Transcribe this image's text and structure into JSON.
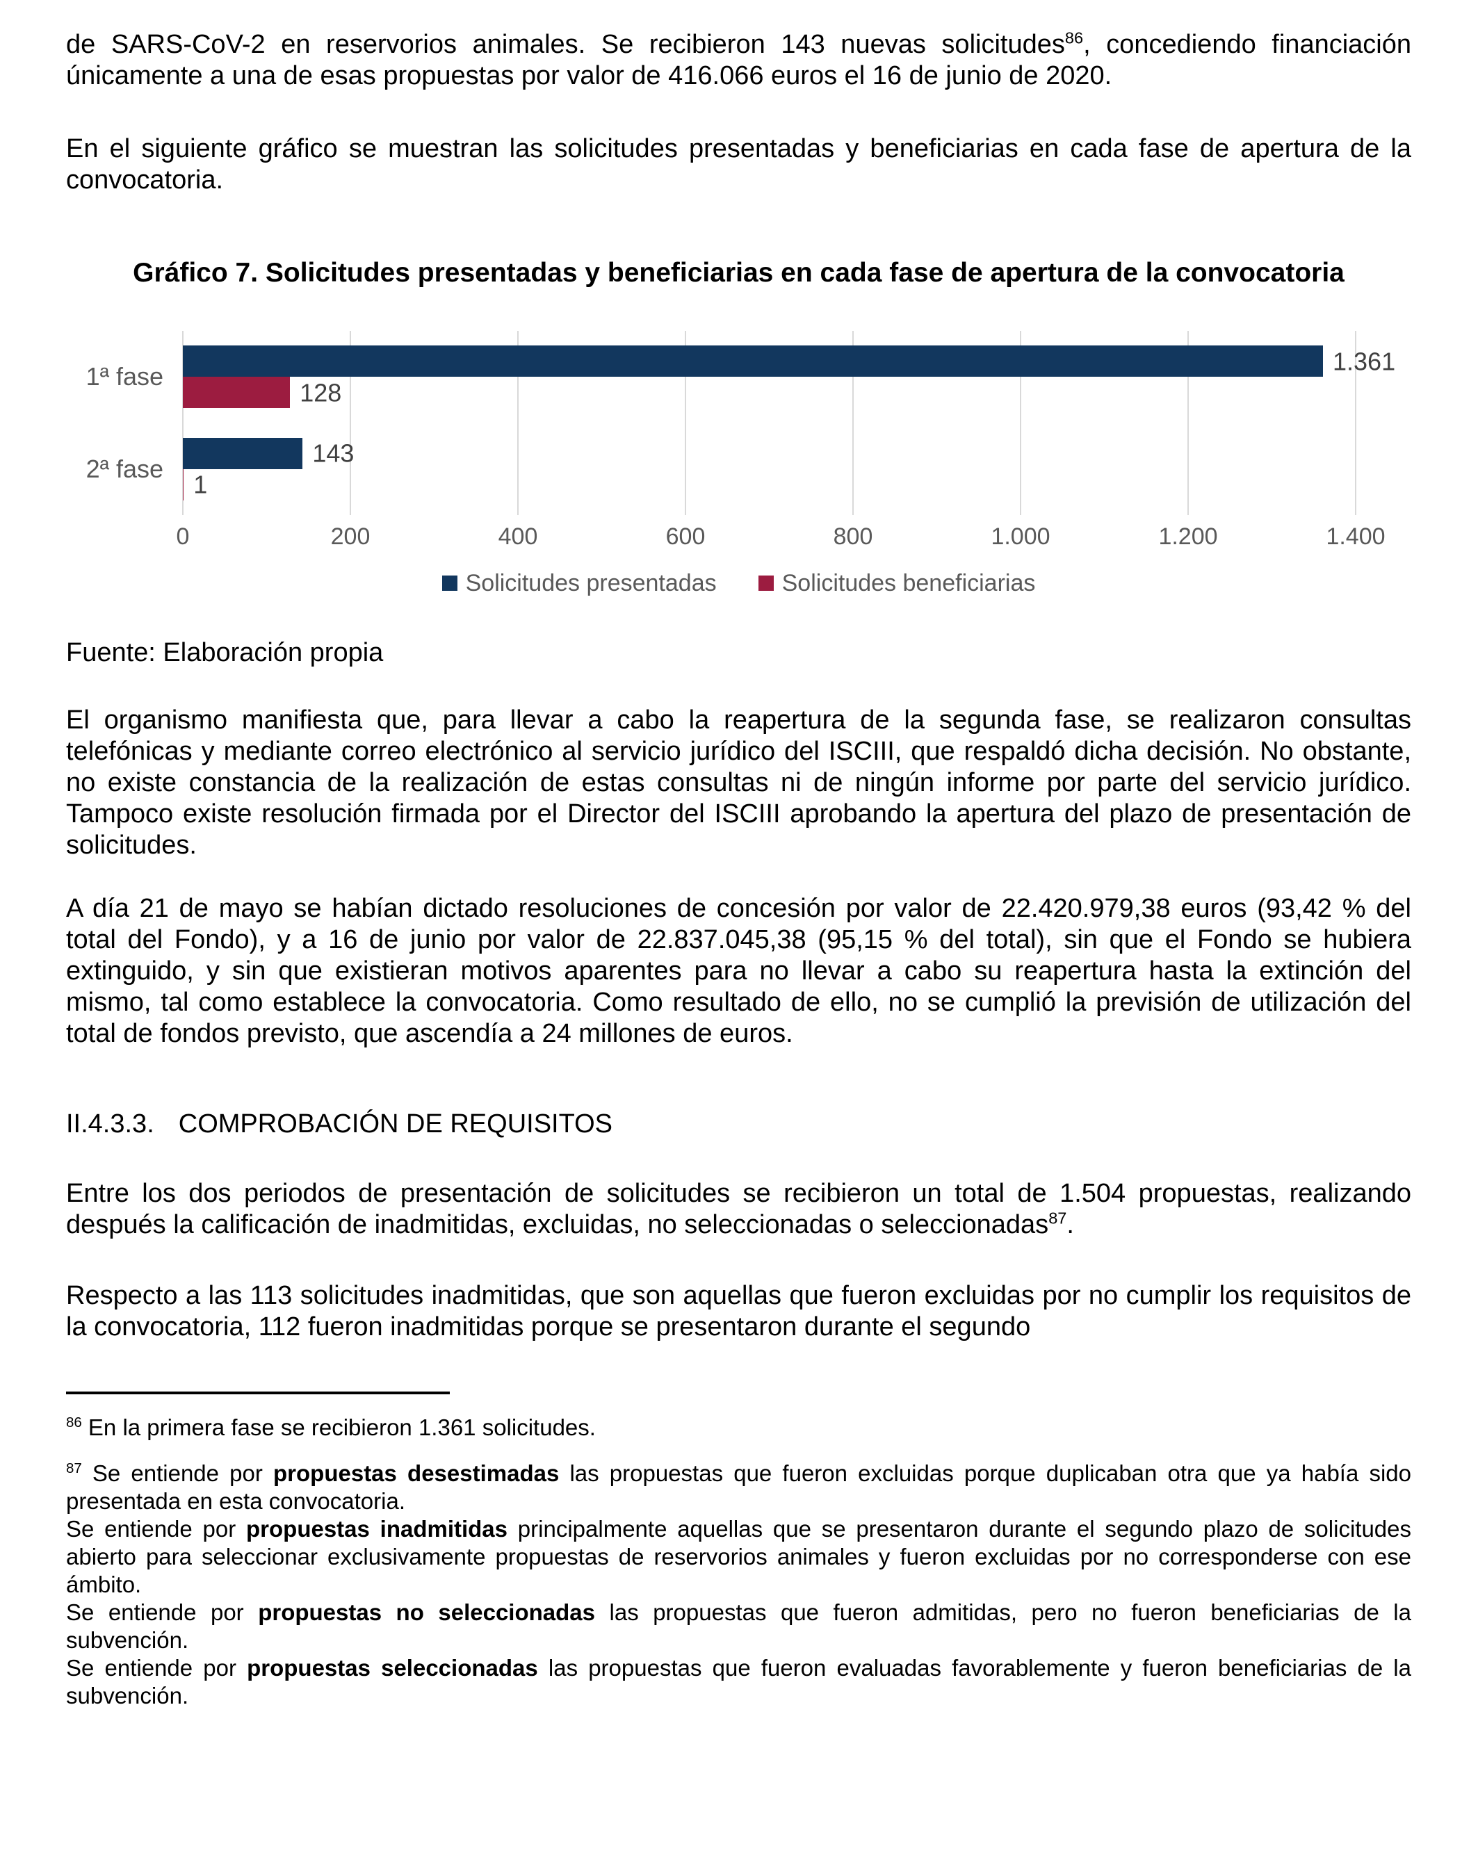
{
  "page": {
    "para1_pre": "de SARS-CoV-2 en reservorios animales. Se recibieron 143 nuevas solicitudes",
    "para1_sup": "86",
    "para1_post": ", concediendo financiación únicamente a una de esas propuestas por valor de 416.066 euros el 16 de junio de 2020.",
    "para2": "En el siguiente gráfico se muestran las solicitudes presentadas y beneficiarias en cada fase de apertura de la convocatoria.",
    "fuente": "Fuente: Elaboración propia",
    "para3": "El organismo manifiesta que, para llevar a cabo la reapertura de la segunda fase, se realizaron consultas telefónicas y mediante correo electrónico al servicio jurídico del ISCIII, que respaldó dicha decisión. No obstante, no existe constancia de la realización de estas consultas ni de ningún informe por parte del servicio jurídico. Tampoco existe resolución firmada por el Director del ISCIII aprobando la apertura del plazo de presentación de solicitudes.",
    "para4": "A día 21 de mayo se habían dictado resoluciones de concesión por valor de 22.420.979,38 euros (93,42 % del total del Fondo), y a 16 de junio por valor de 22.837.045,38 (95,15 % del total), sin que el Fondo se hubiera extinguido, y sin que existieran motivos aparentes para no llevar a cabo su reapertura hasta la extinción del mismo, tal como establece la convocatoria. Como resultado de ello, no se cumplió la previsión de utilización del total de fondos previsto, que ascendía a 24 millones de euros.",
    "heading_number": "II.4.3.3.",
    "heading_text": "COMPROBACIÓN DE REQUISITOS",
    "para5_pre": "Entre los dos periodos de presentación de solicitudes se recibieron un total de 1.504 propuestas, realizando después la calificación de inadmitidas, excluidas, no seleccionadas o seleccionadas",
    "para5_sup": "87",
    "para5_post": ".",
    "para6": "Respecto a las 113 solicitudes inadmitidas, que son aquellas que fueron excluidas por no cumplir los requisitos de la convocatoria, 112 fueron inadmitidas porque se presentaron durante el segundo"
  },
  "chart_data": {
    "type": "bar",
    "orientation": "horizontal",
    "title": "Gráfico 7. Solicitudes presentadas y beneficiarias en cada fase de apertura de la convocatoria",
    "categories": [
      "1ª fase",
      "2ª fase"
    ],
    "series": [
      {
        "name": "Solicitudes presentadas",
        "color": "#12375E",
        "values": [
          1361,
          143
        ],
        "labels": [
          "1.361",
          "143"
        ]
      },
      {
        "name": "Solicitudes beneficiarias",
        "color": "#9C1C40",
        "values": [
          128,
          1
        ],
        "labels": [
          "128",
          "1"
        ]
      }
    ],
    "x_ticks": [
      "0",
      "200",
      "400",
      "600",
      "800",
      "1.000",
      "1.200",
      "1.400"
    ],
    "xlim": [
      0,
      1400
    ],
    "grid": true,
    "legend_position": "bottom",
    "colors": {
      "grid": "#D9D9D9",
      "axis_text": "#595959",
      "value_label": "#404040"
    }
  },
  "footnotes": {
    "fn86": {
      "number": "86",
      "text": "En la primera fase se recibieron 1.361 solicitudes."
    },
    "fn87": {
      "number": "87",
      "lines": [
        {
          "pre": "Se entiende por ",
          "bold": "propuestas desestimadas",
          "post": " las propuestas que fueron excluidas porque duplicaban otra que ya había sido presentada en esta convocatoria."
        },
        {
          "pre": "Se entiende por ",
          "bold": "propuestas inadmitidas",
          "post": " principalmente aquellas que se presentaron durante el segundo plazo de solicitudes abierto para seleccionar exclusivamente propuestas de reservorios animales y fueron excluidas por no corresponderse con ese ámbito."
        },
        {
          "pre": "Se entiende por ",
          "bold": "propuestas no seleccionadas",
          "post": " las propuestas que fueron admitidas, pero no fueron beneficiarias de la subvención."
        },
        {
          "pre": "Se entiende por ",
          "bold": "propuestas seleccionadas",
          "post": " las propuestas que fueron evaluadas favorablemente y fueron beneficiarias de la subvención."
        }
      ]
    }
  }
}
